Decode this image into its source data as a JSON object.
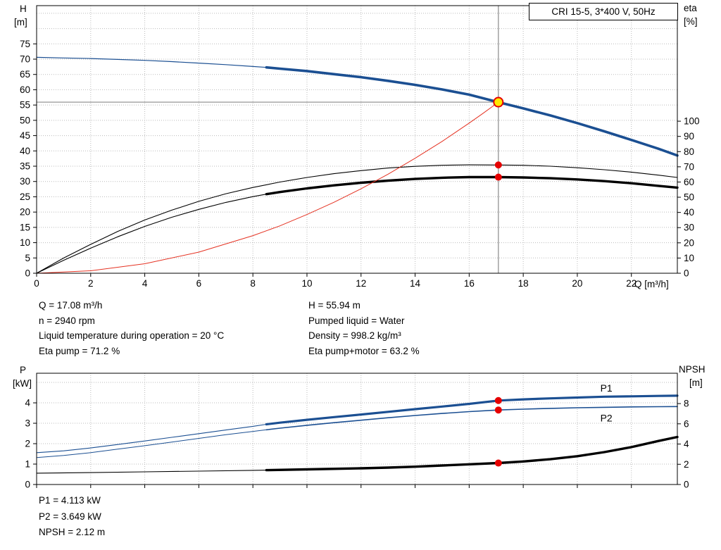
{
  "colors": {
    "curve_blue": "#1b4f92",
    "curve_black": "#000000",
    "curve_red": "#e53222",
    "dot_red": "#e60000",
    "marker_fill": "#ffe800",
    "grid": "#bbbbbb",
    "crosshair": "#8a8a8a",
    "frame": "#000000"
  },
  "info_top": {
    "left": [
      "Q = 17.08 m³/h",
      "n = 2940 rpm",
      "Liquid temperature during operation = 20 °C",
      "Eta pump = 71.2 %"
    ],
    "right": [
      "H = 55.94 m",
      "Pumped liquid = Water",
      "Density = 998.2 kg/m³",
      "Eta pump+motor = 63.2 %"
    ]
  },
  "info_bottom": [
    "P1 = 4.113 kW",
    "P2 = 3.649 kW",
    "NPSH = 2.12 m"
  ],
  "chart_data": [
    {
      "type": "line",
      "title": "CRI 15-5, 3*400 V, 50Hz",
      "x_axis": {
        "label": "Q [m³/h]",
        "min": 0,
        "max": 23.7,
        "ticks": [
          0,
          2,
          4,
          6,
          8,
          10,
          12,
          14,
          16,
          18,
          20,
          22
        ]
      },
      "y_left": {
        "label": "H",
        "unit": "[m]",
        "min": 0,
        "max": 87.5,
        "ticks": [
          0,
          5,
          10,
          15,
          20,
          25,
          30,
          35,
          40,
          45,
          50,
          55,
          60,
          65,
          70,
          75
        ],
        "grid": [
          5,
          10,
          15,
          20,
          25,
          30,
          35,
          40,
          45,
          50,
          55,
          60,
          65,
          70,
          75,
          80,
          85
        ]
      },
      "y_right": {
        "label": "eta",
        "unit": "[%]",
        "min": 0,
        "max": 176,
        "ticks": [
          0,
          10,
          20,
          30,
          40,
          50,
          60,
          70,
          80,
          90,
          100
        ]
      },
      "crosshair": {
        "x": 17.08,
        "y": 55.94
      },
      "series": [
        {
          "name": "head-curve-low-flow",
          "axis": "left",
          "color": "#1b4f92",
          "width": 1.2,
          "points": [
            [
              0,
              70.6
            ],
            [
              1,
              70.4
            ],
            [
              2,
              70.2
            ],
            [
              3,
              69.9
            ],
            [
              4,
              69.6
            ],
            [
              5,
              69.2
            ],
            [
              6,
              68.7
            ],
            [
              7,
              68.2
            ],
            [
              8,
              67.6
            ],
            [
              8.5,
              67.3
            ]
          ]
        },
        {
          "name": "head-curve",
          "axis": "left",
          "color": "#1b4f92",
          "width": 3.6,
          "points": [
            [
              8.5,
              67.3
            ],
            [
              9,
              66.9
            ],
            [
              10,
              66.1
            ],
            [
              11,
              65.1
            ],
            [
              12,
              64.1
            ],
            [
              13,
              62.9
            ],
            [
              14,
              61.6
            ],
            [
              15,
              60.1
            ],
            [
              16,
              58.4
            ],
            [
              17.08,
              55.94
            ],
            [
              18,
              53.9
            ],
            [
              19,
              51.6
            ],
            [
              20,
              49.1
            ],
            [
              21,
              46.4
            ],
            [
              22,
              43.6
            ],
            [
              23,
              40.7
            ],
            [
              23.7,
              38.5
            ]
          ]
        },
        {
          "name": "eta-pump-curve",
          "axis": "right",
          "color": "#000000",
          "width": 1.1,
          "points": [
            [
              0,
              0
            ],
            [
              1,
              10
            ],
            [
              2,
              19
            ],
            [
              3,
              27.5
            ],
            [
              4,
              35
            ],
            [
              5,
              41.5
            ],
            [
              6,
              47.3
            ],
            [
              7,
              52.3
            ],
            [
              8,
              56.4
            ],
            [
              9,
              60
            ],
            [
              10,
              63
            ],
            [
              11,
              65.5
            ],
            [
              12,
              67.5
            ],
            [
              13,
              69.2
            ],
            [
              14,
              70.3
            ],
            [
              15,
              71
            ],
            [
              16,
              71.3
            ],
            [
              17.08,
              71.2
            ],
            [
              18,
              71
            ],
            [
              19,
              70.4
            ],
            [
              20,
              69.4
            ],
            [
              21,
              68.1
            ],
            [
              22,
              66.5
            ],
            [
              23,
              64.5
            ],
            [
              23.7,
              63
            ]
          ]
        },
        {
          "name": "eta-pump-motor-curve-low-flow",
          "axis": "right",
          "color": "#000000",
          "width": 1.1,
          "points": [
            [
              0,
              0
            ],
            [
              1,
              8.5
            ],
            [
              2,
              16.5
            ],
            [
              3,
              24
            ],
            [
              4,
              30.8
            ],
            [
              5,
              36.8
            ],
            [
              6,
              42
            ],
            [
              7,
              46.6
            ],
            [
              8,
              50.4
            ],
            [
              8.5,
              52
            ]
          ]
        },
        {
          "name": "eta-pump-motor-curve",
          "axis": "right",
          "color": "#000000",
          "width": 3.4,
          "points": [
            [
              8.5,
              52
            ],
            [
              9,
              53.4
            ],
            [
              10,
              55.8
            ],
            [
              11,
              57.8
            ],
            [
              12,
              59.5
            ],
            [
              13,
              60.9
            ],
            [
              14,
              62
            ],
            [
              15,
              62.8
            ],
            [
              16,
              63.2
            ],
            [
              17.08,
              63.2
            ],
            [
              18,
              63
            ],
            [
              19,
              62.5
            ],
            [
              20,
              61.7
            ],
            [
              21,
              60.6
            ],
            [
              22,
              59.2
            ],
            [
              23,
              57.5
            ],
            [
              23.7,
              56.3
            ]
          ]
        },
        {
          "name": "system-curve",
          "axis": "left",
          "color": "#e53222",
          "width": 1,
          "points": [
            [
              0,
              0
            ],
            [
              2,
              0.8
            ],
            [
              4,
              3.1
            ],
            [
              6,
              6.9
            ],
            [
              8,
              12.3
            ],
            [
              9,
              15.5
            ],
            [
              10,
              19.2
            ],
            [
              11,
              23.2
            ],
            [
              12,
              27.6
            ],
            [
              13,
              32.4
            ],
            [
              14,
              37.6
            ],
            [
              15,
              43.1
            ],
            [
              16,
              49.1
            ],
            [
              16.5,
              52.2
            ],
            [
              17.08,
              55.94
            ]
          ]
        }
      ],
      "markers": [
        {
          "name": "duty-point",
          "x": 17.08,
          "y": 55.94,
          "axis": "left",
          "r": 6.5,
          "fill": "#ffe800",
          "stroke": "#e60000",
          "stroke_width": 2
        },
        {
          "name": "eta-pump-point",
          "x": 17.08,
          "y": 71.2,
          "axis": "right",
          "r": 4.5,
          "fill": "#e60000",
          "stroke": "#e60000",
          "stroke_width": 1
        },
        {
          "name": "eta-pump-motor-point",
          "x": 17.08,
          "y": 63.2,
          "axis": "right",
          "r": 4.5,
          "fill": "#e60000",
          "stroke": "#e60000",
          "stroke_width": 1
        }
      ],
      "annotations": []
    },
    {
      "type": "line",
      "title": "",
      "x_axis": {
        "label": "",
        "min": 0,
        "max": 23.7,
        "ticks": [
          0,
          2,
          4,
          6,
          8,
          10,
          12,
          14,
          16,
          18,
          20,
          22
        ]
      },
      "y_left": {
        "label": "P",
        "unit": "[kW]",
        "min": 0,
        "max": 5.45,
        "ticks": [
          0,
          1,
          2,
          3,
          4
        ],
        "grid": [
          1,
          2,
          3,
          4,
          5
        ]
      },
      "y_right": {
        "label": "NPSH",
        "unit": "[m]",
        "min": 0,
        "max": 11,
        "ticks": [
          0,
          2,
          4,
          6,
          8
        ]
      },
      "series": [
        {
          "name": "p1-curve-low-flow",
          "axis": "left",
          "color": "#1b4f92",
          "width": 1.1,
          "points": [
            [
              0,
              1.56
            ],
            [
              1,
              1.65
            ],
            [
              2,
              1.79
            ],
            [
              3,
              1.96
            ],
            [
              4,
              2.13
            ],
            [
              5,
              2.31
            ],
            [
              6,
              2.49
            ],
            [
              7,
              2.67
            ],
            [
              8,
              2.85
            ],
            [
              8.5,
              2.95
            ]
          ]
        },
        {
          "name": "p1-curve",
          "axis": "left",
          "color": "#1b4f92",
          "width": 3.2,
          "points": [
            [
              8.5,
              2.95
            ],
            [
              9,
              3.03
            ],
            [
              10,
              3.17
            ],
            [
              11,
              3.3
            ],
            [
              12,
              3.43
            ],
            [
              13,
              3.56
            ],
            [
              14,
              3.69
            ],
            [
              15,
              3.82
            ],
            [
              16,
              3.95
            ],
            [
              17.08,
              4.113
            ],
            [
              18,
              4.17
            ],
            [
              19,
              4.22
            ],
            [
              20,
              4.26
            ],
            [
              21,
              4.3
            ],
            [
              22,
              4.32
            ],
            [
              23,
              4.34
            ],
            [
              23.7,
              4.35
            ]
          ]
        },
        {
          "name": "p2-curve-low-flow",
          "axis": "left",
          "color": "#1b4f92",
          "width": 1,
          "points": [
            [
              0,
              1.32
            ],
            [
              1,
              1.42
            ],
            [
              2,
              1.56
            ],
            [
              3,
              1.73
            ],
            [
              4,
              1.9
            ],
            [
              5,
              2.08
            ],
            [
              6,
              2.26
            ],
            [
              7,
              2.44
            ],
            [
              8,
              2.6
            ],
            [
              8.5,
              2.68
            ]
          ]
        },
        {
          "name": "p2-curve",
          "axis": "left",
          "color": "#1b4f92",
          "width": 1.6,
          "points": [
            [
              8.5,
              2.68
            ],
            [
              9,
              2.76
            ],
            [
              10,
              2.9
            ],
            [
              11,
              3.03
            ],
            [
              12,
              3.15
            ],
            [
              13,
              3.27
            ],
            [
              14,
              3.38
            ],
            [
              15,
              3.48
            ],
            [
              16,
              3.57
            ],
            [
              17.08,
              3.649
            ],
            [
              18,
              3.69
            ],
            [
              19,
              3.73
            ],
            [
              20,
              3.76
            ],
            [
              21,
              3.78
            ],
            [
              22,
              3.8
            ],
            [
              23,
              3.81
            ],
            [
              23.7,
              3.82
            ]
          ]
        },
        {
          "name": "npsh-curve-low-flow",
          "axis": "right",
          "color": "#000000",
          "width": 1.1,
          "points": [
            [
              0,
              1.12
            ],
            [
              2,
              1.18
            ],
            [
              4,
              1.25
            ],
            [
              6,
              1.32
            ],
            [
              8,
              1.4
            ],
            [
              8.5,
              1.42
            ]
          ]
        },
        {
          "name": "npsh-curve",
          "axis": "right",
          "color": "#000000",
          "width": 3.4,
          "points": [
            [
              8.5,
              1.42
            ],
            [
              10,
              1.5
            ],
            [
              12,
              1.6
            ],
            [
              13,
              1.67
            ],
            [
              14,
              1.76
            ],
            [
              15,
              1.88
            ],
            [
              16,
              2.0
            ],
            [
              17.08,
              2.12
            ],
            [
              18,
              2.28
            ],
            [
              19,
              2.5
            ],
            [
              20,
              2.8
            ],
            [
              21,
              3.2
            ],
            [
              22,
              3.7
            ],
            [
              23,
              4.3
            ],
            [
              23.7,
              4.7
            ]
          ]
        }
      ],
      "markers": [
        {
          "name": "p1-point",
          "x": 17.08,
          "y": 4.113,
          "axis": "left",
          "r": 4.5,
          "fill": "#e60000",
          "stroke": "#e60000",
          "stroke_width": 1
        },
        {
          "name": "p2-point",
          "x": 17.08,
          "y": 3.649,
          "axis": "left",
          "r": 4.5,
          "fill": "#e60000",
          "stroke": "#e60000",
          "stroke_width": 1
        },
        {
          "name": "npsh-point",
          "x": 17.08,
          "y": 2.12,
          "axis": "right",
          "r": 4.5,
          "fill": "#e60000",
          "stroke": "#e60000",
          "stroke_width": 1
        }
      ],
      "annotations": [
        {
          "text": "P1",
          "x": 20.85,
          "y": 4.55,
          "axis": "left",
          "color": "#1b4f92",
          "size": 14
        },
        {
          "text": "P2",
          "x": 20.85,
          "y": 3.08,
          "axis": "left",
          "color": "#1b4f92",
          "size": 14
        }
      ]
    }
  ]
}
